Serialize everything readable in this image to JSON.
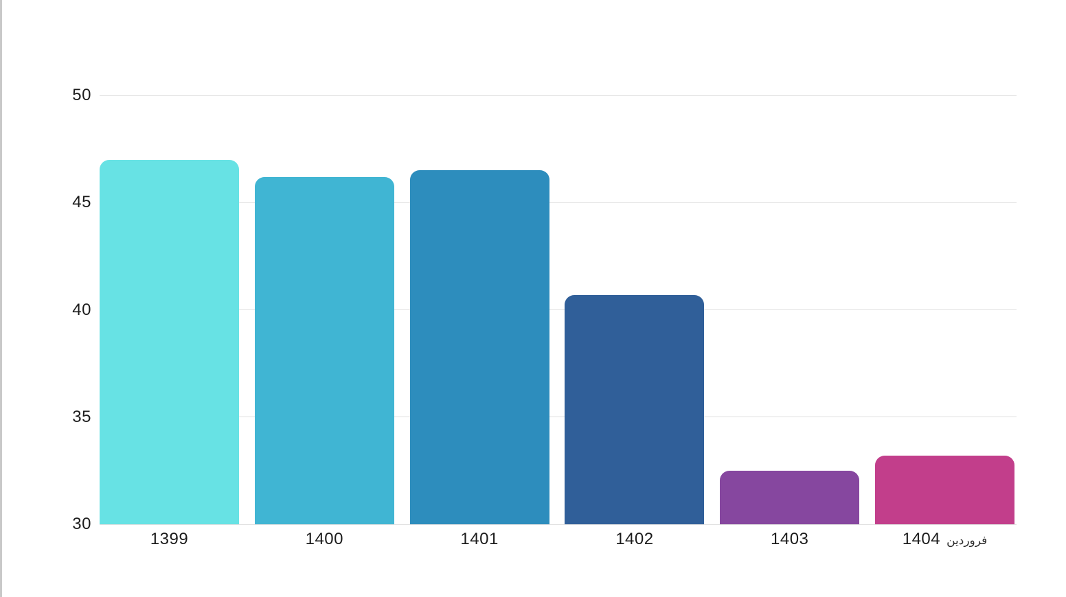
{
  "page": {
    "background_color": "#ffffff",
    "left_border_color": "#c9c9c9"
  },
  "chart_data": {
    "type": "bar",
    "title": "",
    "xlabel": "",
    "ylabel": "",
    "categories": [
      "1399",
      "1400",
      "1401",
      "1402",
      "1403",
      "1404"
    ],
    "last_category_suffix": "فروردین",
    "last_category_full": "فروردین 1404",
    "values": [
      47,
      46.2,
      46.5,
      40.7,
      32.5,
      33.2
    ],
    "colors": [
      "#67E2E4",
      "#40B5D3",
      "#2D8DBD",
      "#305F99",
      "#86479F",
      "#C23E8B"
    ],
    "ylim": [
      30,
      50
    ],
    "y_ticks": [
      30,
      35,
      40,
      45,
      50
    ],
    "grid": true,
    "legend_position": "none",
    "gridline_color": "#e0e0e0",
    "label_color": "#1c1c1c"
  }
}
